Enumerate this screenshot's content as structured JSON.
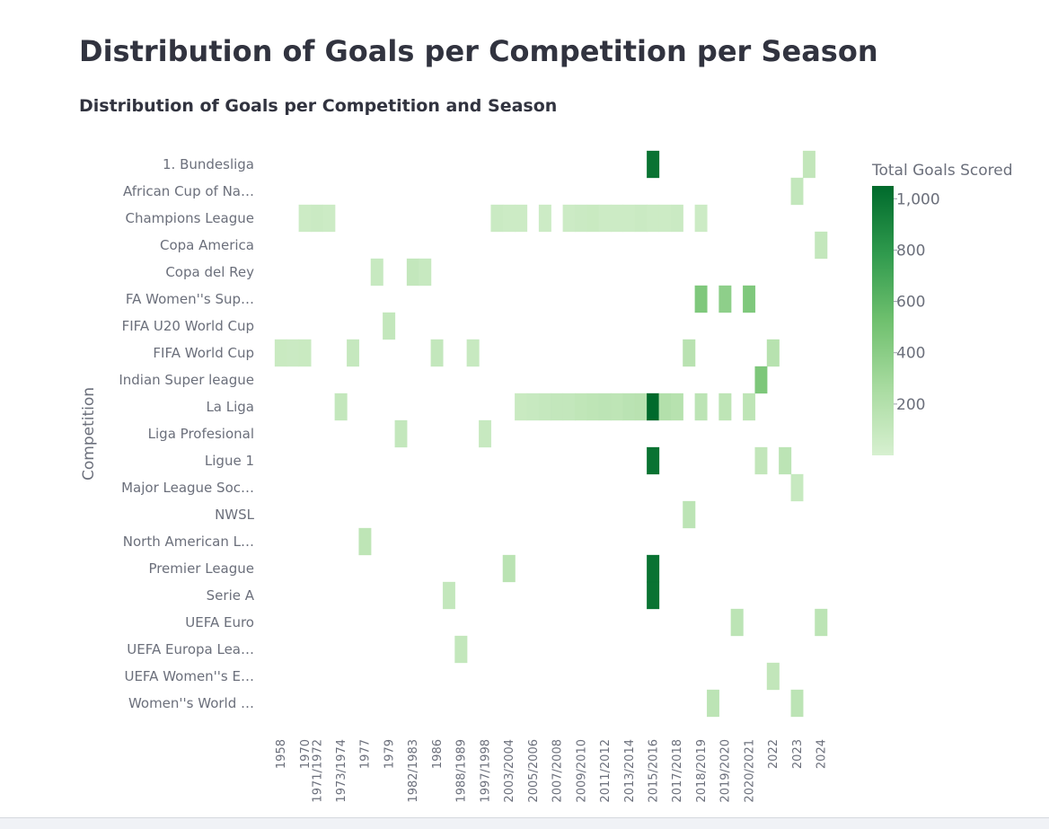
{
  "page": {
    "title": "Distribution of Goals per Competition per Season"
  },
  "chart_data": {
    "type": "heatmap",
    "title": "Distribution of Goals per Competition and Season",
    "xlabel": "",
    "ylabel": "Competition",
    "colorbar_title": "Total Goals Scored",
    "colorbar_range": [
      0,
      1050
    ],
    "colorbar_ticks": [
      200,
      400,
      600,
      800,
      1000
    ],
    "colorbar_tick_labels": [
      "200",
      "400",
      "600",
      "800",
      "1,000"
    ],
    "colorscale": [
      "#d7f0d0",
      "#a8dba0",
      "#6fc06e",
      "#2f9a4d",
      "#006a2c"
    ],
    "columns": [
      "1958",
      "1966",
      "1970",
      "1971/1972",
      "1972/1973",
      "1973/1974",
      "1974",
      "1977",
      "1978",
      "1979",
      "1980/1981",
      "1982/1983",
      "1983/1984",
      "1986",
      "1987/1988",
      "1988/1989",
      "1990",
      "1997/1998",
      "1998",
      "2003/2004",
      "2004/2005",
      "2005/2006",
      "2006/2007",
      "2007/2008",
      "2008/2009",
      "2009/2010",
      "2010/2011",
      "2011/2012",
      "2012/2013",
      "2013/2014",
      "2014/2015",
      "2015/2016",
      "2016/2017",
      "2017/2018",
      "2018",
      "2018/2019",
      "2019",
      "2019/2020",
      "2020",
      "2020/2021",
      "2021",
      "2022",
      "2022/2023",
      "2023",
      "2023/2024",
      "2024"
    ],
    "x_tick_labels": [
      "1958",
      "1970",
      "1971/1972",
      "1973/1974",
      "1977",
      "1979",
      "1982/1983",
      "1986",
      "1988/1989",
      "1997/1998",
      "2003/2004",
      "2005/2006",
      "2007/2008",
      "2009/2010",
      "2011/2012",
      "2013/2014",
      "2015/2016",
      "2017/2018",
      "2018/2019",
      "2019/2020",
      "2020/2021",
      "2022",
      "2023",
      "2024"
    ],
    "rows": [
      "1. Bundesliga",
      "African Cup of Na…",
      "Champions League",
      "Copa America",
      "Copa del Rey",
      "FA Women''s Sup…",
      "FIFA U20 World Cup",
      "FIFA World Cup",
      "Indian Super league",
      "La Liga",
      "Liga Profesional",
      "Ligue 1",
      "Major League Soc…",
      "NWSL",
      "North American L…",
      "Premier League",
      "Serie A",
      "UEFA Euro",
      "UEFA Europa Lea…",
      "UEFA Women''s E…",
      "Women''s World …"
    ],
    "cells": [
      {
        "row": "1. Bundesliga",
        "col": "2015/2016",
        "value": 1000
      },
      {
        "row": "1. Bundesliga",
        "col": "2023/2024",
        "value": 120
      },
      {
        "row": "African Cup of Na…",
        "col": "2023",
        "value": 110
      },
      {
        "row": "Champions League",
        "col": "1970",
        "value": 60
      },
      {
        "row": "Champions League",
        "col": "1971/1972",
        "value": 70
      },
      {
        "row": "Champions League",
        "col": "1972/1973",
        "value": 60
      },
      {
        "row": "Champions League",
        "col": "1998",
        "value": 70
      },
      {
        "row": "Champions League",
        "col": "2003/2004",
        "value": 60
      },
      {
        "row": "Champions League",
        "col": "2004/2005",
        "value": 60
      },
      {
        "row": "Champions League",
        "col": "2006/2007",
        "value": 60
      },
      {
        "row": "Champions League",
        "col": "2008/2009",
        "value": 60
      },
      {
        "row": "Champions League",
        "col": "2009/2010",
        "value": 70
      },
      {
        "row": "Champions League",
        "col": "2010/2011",
        "value": 80
      },
      {
        "row": "Champions League",
        "col": "2011/2012",
        "value": 60
      },
      {
        "row": "Champions League",
        "col": "2012/2013",
        "value": 60
      },
      {
        "row": "Champions League",
        "col": "2013/2014",
        "value": 60
      },
      {
        "row": "Champions League",
        "col": "2014/2015",
        "value": 70
      },
      {
        "row": "Champions League",
        "col": "2015/2016",
        "value": 60
      },
      {
        "row": "Champions League",
        "col": "2016/2017",
        "value": 60
      },
      {
        "row": "Champions League",
        "col": "2017/2018",
        "value": 70
      },
      {
        "row": "Champions League",
        "col": "2018/2019",
        "value": 60
      },
      {
        "row": "Copa America",
        "col": "2024",
        "value": 110
      },
      {
        "row": "Copa del Rey",
        "col": "1978",
        "value": 90
      },
      {
        "row": "Copa del Rey",
        "col": "1982/1983",
        "value": 110
      },
      {
        "row": "Copa del Rey",
        "col": "1983/1984",
        "value": 90
      },
      {
        "row": "FA Women''s Sup…",
        "col": "2018/2019",
        "value": 450
      },
      {
        "row": "FA Women''s Sup…",
        "col": "2019/2020",
        "value": 380
      },
      {
        "row": "FA Women''s Sup…",
        "col": "2020/2021",
        "value": 450
      },
      {
        "row": "FIFA U20 World Cup",
        "col": "1979",
        "value": 110
      },
      {
        "row": "FIFA World Cup",
        "col": "1958",
        "value": 80
      },
      {
        "row": "FIFA World Cup",
        "col": "1966",
        "value": 70
      },
      {
        "row": "FIFA World Cup",
        "col": "1970",
        "value": 80
      },
      {
        "row": "FIFA World Cup",
        "col": "1974",
        "value": 100
      },
      {
        "row": "FIFA World Cup",
        "col": "1986",
        "value": 110
      },
      {
        "row": "FIFA World Cup",
        "col": "1990",
        "value": 90
      },
      {
        "row": "FIFA World Cup",
        "col": "2018",
        "value": 170
      },
      {
        "row": "FIFA World Cup",
        "col": "2022",
        "value": 180
      },
      {
        "row": "Indian Super league",
        "col": "2021",
        "value": 460
      },
      {
        "row": "La Liga",
        "col": "1973/1974",
        "value": 110
      },
      {
        "row": "La Liga",
        "col": "2004/2005",
        "value": 80
      },
      {
        "row": "La Liga",
        "col": "2005/2006",
        "value": 90
      },
      {
        "row": "La Liga",
        "col": "2006/2007",
        "value": 100
      },
      {
        "row": "La Liga",
        "col": "2007/2008",
        "value": 110
      },
      {
        "row": "La Liga",
        "col": "2008/2009",
        "value": 110
      },
      {
        "row": "La Liga",
        "col": "2009/2010",
        "value": 130
      },
      {
        "row": "La Liga",
        "col": "2010/2011",
        "value": 140
      },
      {
        "row": "La Liga",
        "col": "2011/2012",
        "value": 150
      },
      {
        "row": "La Liga",
        "col": "2012/2013",
        "value": 140
      },
      {
        "row": "La Liga",
        "col": "2013/2014",
        "value": 160
      },
      {
        "row": "La Liga",
        "col": "2014/2015",
        "value": 170
      },
      {
        "row": "La Liga",
        "col": "2015/2016",
        "value": 1050
      },
      {
        "row": "La Liga",
        "col": "2016/2017",
        "value": 200
      },
      {
        "row": "La Liga",
        "col": "2017/2018",
        "value": 180
      },
      {
        "row": "La Liga",
        "col": "2018/2019",
        "value": 150
      },
      {
        "row": "La Liga",
        "col": "2019/2020",
        "value": 140
      },
      {
        "row": "La Liga",
        "col": "2020/2021",
        "value": 140
      },
      {
        "row": "Liga Profesional",
        "col": "1980/1981",
        "value": 110
      },
      {
        "row": "Liga Profesional",
        "col": "1997/1998",
        "value": 90
      },
      {
        "row": "Ligue 1",
        "col": "2015/2016",
        "value": 1000
      },
      {
        "row": "Ligue 1",
        "col": "2021",
        "value": 120
      },
      {
        "row": "Ligue 1",
        "col": "2022/2023",
        "value": 150
      },
      {
        "row": "Major League Soc…",
        "col": "2023",
        "value": 90
      },
      {
        "row": "NWSL",
        "col": "2018",
        "value": 150
      },
      {
        "row": "North American L…",
        "col": "1977",
        "value": 140
      },
      {
        "row": "Premier League",
        "col": "2003/2004",
        "value": 160
      },
      {
        "row": "Premier League",
        "col": "2015/2016",
        "value": 1000
      },
      {
        "row": "Serie A",
        "col": "1987/1988",
        "value": 110
      },
      {
        "row": "Serie A",
        "col": "2015/2016",
        "value": 1000
      },
      {
        "row": "UEFA Euro",
        "col": "2020",
        "value": 150
      },
      {
        "row": "UEFA Euro",
        "col": "2024",
        "value": 150
      },
      {
        "row": "UEFA Europa Lea…",
        "col": "1988/1989",
        "value": 110
      },
      {
        "row": "UEFA Women''s E…",
        "col": "2022",
        "value": 120
      },
      {
        "row": "Women''s World …",
        "col": "2019",
        "value": 150
      },
      {
        "row": "Women''s World …",
        "col": "2023",
        "value": 150
      }
    ]
  }
}
